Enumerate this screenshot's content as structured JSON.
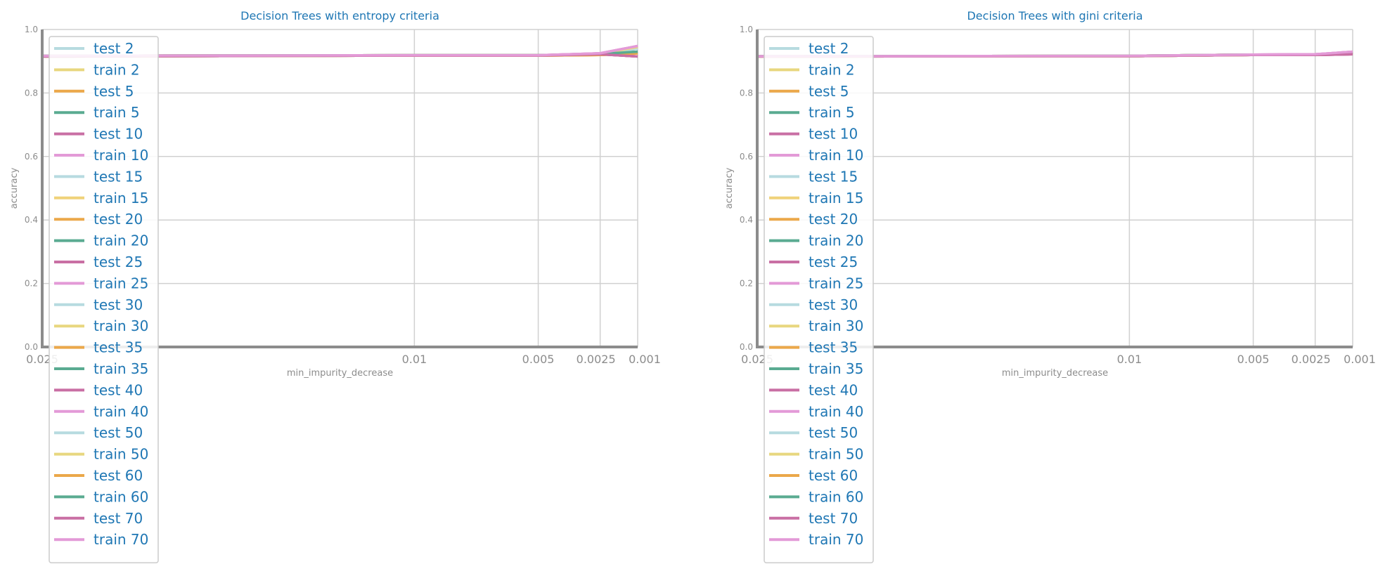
{
  "chart_data": [
    {
      "type": "line",
      "title": "Decision Trees with entropy criteria",
      "xlabel": "min_impurity_decrease",
      "ylabel": "accuracy",
      "ylim": [
        0,
        1
      ],
      "yticks": [
        "0.0",
        "0.2",
        "0.4",
        "0.6",
        "0.8",
        "1.0"
      ],
      "x": [
        "0.025",
        "0.01",
        "0.005",
        "0.0025",
        "0.001"
      ],
      "grid": true,
      "legend_position": "upper-left",
      "series": [
        {
          "name": "test 2",
          "color": "#b7dbe0",
          "values": [
            0.915,
            0.918,
            0.918,
            0.922,
            0.94
          ]
        },
        {
          "name": "train 2",
          "color": "#e8d77f",
          "values": [
            0.917,
            0.919,
            0.919,
            0.923,
            0.945
          ]
        },
        {
          "name": "test 5",
          "color": "#eba84a",
          "values": [
            0.915,
            0.918,
            0.918,
            0.92,
            0.925
          ]
        },
        {
          "name": "train 5",
          "color": "#5aab91",
          "values": [
            0.917,
            0.919,
            0.919,
            0.923,
            0.93
          ]
        },
        {
          "name": "test 10",
          "color": "#c96fa4",
          "values": [
            0.915,
            0.918,
            0.918,
            0.922,
            0.915
          ]
        },
        {
          "name": "train 10",
          "color": "#e39ad7",
          "values": [
            0.917,
            0.919,
            0.919,
            0.925,
            0.948
          ]
        },
        {
          "name": "test 15",
          "color": "#b7dbe0",
          "values": [
            0.915,
            0.918,
            0.918,
            0.922,
            0.94
          ]
        },
        {
          "name": "train 15",
          "color": "#f0d27a",
          "values": [
            0.917,
            0.919,
            0.919,
            0.923,
            0.945
          ]
        },
        {
          "name": "test 20",
          "color": "#eba84a",
          "values": [
            0.915,
            0.918,
            0.918,
            0.92,
            0.925
          ]
        },
        {
          "name": "train 20",
          "color": "#5aab91",
          "values": [
            0.917,
            0.919,
            0.919,
            0.923,
            0.93
          ]
        },
        {
          "name": "test 25",
          "color": "#c96fa4",
          "values": [
            0.915,
            0.918,
            0.918,
            0.922,
            0.915
          ]
        },
        {
          "name": "train 25",
          "color": "#e39ad7",
          "values": [
            0.917,
            0.919,
            0.919,
            0.925,
            0.948
          ]
        },
        {
          "name": "test 30",
          "color": "#b7dbe0",
          "values": [
            0.915,
            0.918,
            0.918,
            0.922,
            0.94
          ]
        },
        {
          "name": "train 30",
          "color": "#e8d77f",
          "values": [
            0.917,
            0.919,
            0.919,
            0.923,
            0.945
          ]
        },
        {
          "name": "test 35",
          "color": "#eba84a",
          "values": [
            0.915,
            0.918,
            0.918,
            0.92,
            0.925
          ]
        },
        {
          "name": "train 35",
          "color": "#5aab91",
          "values": [
            0.917,
            0.919,
            0.919,
            0.923,
            0.93
          ]
        },
        {
          "name": "test 40",
          "color": "#c96fa4",
          "values": [
            0.915,
            0.918,
            0.918,
            0.922,
            0.915
          ]
        },
        {
          "name": "train 40",
          "color": "#e39ad7",
          "values": [
            0.917,
            0.919,
            0.919,
            0.925,
            0.948
          ]
        },
        {
          "name": "test 50",
          "color": "#b7dbe0",
          "values": [
            0.915,
            0.918,
            0.918,
            0.922,
            0.94
          ]
        },
        {
          "name": "train 50",
          "color": "#e8d77f",
          "values": [
            0.917,
            0.919,
            0.919,
            0.923,
            0.945
          ]
        },
        {
          "name": "test 60",
          "color": "#eba84a",
          "values": [
            0.915,
            0.918,
            0.918,
            0.92,
            0.925
          ]
        },
        {
          "name": "train 60",
          "color": "#5aab91",
          "values": [
            0.917,
            0.919,
            0.919,
            0.923,
            0.93
          ]
        },
        {
          "name": "test 70",
          "color": "#c96fa4",
          "values": [
            0.915,
            0.918,
            0.918,
            0.922,
            0.915
          ]
        },
        {
          "name": "train 70",
          "color": "#e39ad7",
          "values": [
            0.917,
            0.919,
            0.919,
            0.925,
            0.948
          ]
        }
      ]
    },
    {
      "type": "line",
      "title": "Decision Trees with gini criteria",
      "xlabel": "min_impurity_decrease",
      "ylabel": "accuracy",
      "ylim": [
        0,
        1
      ],
      "yticks": [
        "0.0",
        "0.2",
        "0.4",
        "0.6",
        "0.8",
        "1.0"
      ],
      "x": [
        "0.025",
        "0.01",
        "0.005",
        "0.0025",
        "0.001"
      ],
      "grid": true,
      "legend_position": "upper-left",
      "series": [
        {
          "name": "test 2",
          "color": "#b7dbe0",
          "values": [
            0.915,
            0.916,
            0.92,
            0.92,
            0.925
          ]
        },
        {
          "name": "train 2",
          "color": "#e8d77f",
          "values": [
            0.916,
            0.917,
            0.921,
            0.921,
            0.928
          ]
        },
        {
          "name": "test 5",
          "color": "#eba84a",
          "values": [
            0.915,
            0.916,
            0.92,
            0.92,
            0.925
          ]
        },
        {
          "name": "train 5",
          "color": "#5aab91",
          "values": [
            0.916,
            0.917,
            0.921,
            0.921,
            0.928
          ]
        },
        {
          "name": "test 10",
          "color": "#c96fa4",
          "values": [
            0.915,
            0.916,
            0.92,
            0.92,
            0.922
          ]
        },
        {
          "name": "train 10",
          "color": "#e39ad7",
          "values": [
            0.916,
            0.917,
            0.921,
            0.922,
            0.93
          ]
        },
        {
          "name": "test 15",
          "color": "#b7dbe0",
          "values": [
            0.915,
            0.916,
            0.92,
            0.92,
            0.925
          ]
        },
        {
          "name": "train 15",
          "color": "#f0d27a",
          "values": [
            0.916,
            0.917,
            0.921,
            0.921,
            0.928
          ]
        },
        {
          "name": "test 20",
          "color": "#eba84a",
          "values": [
            0.915,
            0.916,
            0.92,
            0.92,
            0.925
          ]
        },
        {
          "name": "train 20",
          "color": "#5aab91",
          "values": [
            0.916,
            0.917,
            0.921,
            0.921,
            0.928
          ]
        },
        {
          "name": "test 25",
          "color": "#c96fa4",
          "values": [
            0.915,
            0.916,
            0.92,
            0.92,
            0.922
          ]
        },
        {
          "name": "train 25",
          "color": "#e39ad7",
          "values": [
            0.916,
            0.917,
            0.921,
            0.922,
            0.93
          ]
        },
        {
          "name": "test 30",
          "color": "#b7dbe0",
          "values": [
            0.915,
            0.916,
            0.92,
            0.92,
            0.925
          ]
        },
        {
          "name": "train 30",
          "color": "#e8d77f",
          "values": [
            0.916,
            0.917,
            0.921,
            0.921,
            0.928
          ]
        },
        {
          "name": "test 35",
          "color": "#eba84a",
          "values": [
            0.915,
            0.916,
            0.92,
            0.92,
            0.925
          ]
        },
        {
          "name": "train 35",
          "color": "#5aab91",
          "values": [
            0.916,
            0.917,
            0.921,
            0.921,
            0.928
          ]
        },
        {
          "name": "test 40",
          "color": "#c96fa4",
          "values": [
            0.915,
            0.916,
            0.92,
            0.92,
            0.922
          ]
        },
        {
          "name": "train 40",
          "color": "#e39ad7",
          "values": [
            0.916,
            0.917,
            0.921,
            0.922,
            0.93
          ]
        },
        {
          "name": "test 50",
          "color": "#b7dbe0",
          "values": [
            0.915,
            0.916,
            0.92,
            0.92,
            0.925
          ]
        },
        {
          "name": "train 50",
          "color": "#e8d77f",
          "values": [
            0.916,
            0.917,
            0.921,
            0.921,
            0.928
          ]
        },
        {
          "name": "test 60",
          "color": "#eba84a",
          "values": [
            0.915,
            0.916,
            0.92,
            0.92,
            0.925
          ]
        },
        {
          "name": "train 60",
          "color": "#5aab91",
          "values": [
            0.916,
            0.917,
            0.921,
            0.921,
            0.928
          ]
        },
        {
          "name": "test 70",
          "color": "#c96fa4",
          "values": [
            0.915,
            0.916,
            0.92,
            0.92,
            0.922
          ]
        },
        {
          "name": "train 70",
          "color": "#e39ad7",
          "values": [
            0.916,
            0.917,
            0.921,
            0.922,
            0.93
          ]
        }
      ]
    }
  ]
}
